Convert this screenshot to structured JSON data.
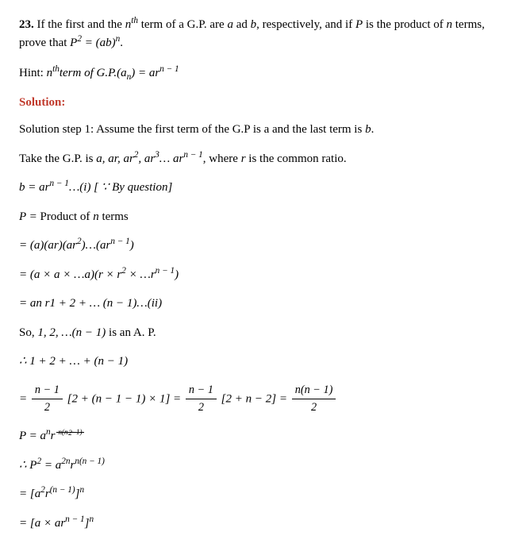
{
  "question": {
    "number": "23.",
    "text_parts": {
      "p1": "If the first and the ",
      "nth": "n",
      "nth_sup": "th",
      "p2": " term of a G.P. are ",
      "a": "a",
      "p3": " ad ",
      "b": "b",
      "p4": ", respectively, and if ",
      "P": "P",
      "p5": " is the product of ",
      "n": "n",
      "p6": " terms, prove that ",
      "eq": "P",
      "eq_sup": "2",
      "eq2": " = (ab)",
      "eq2_sup": "n",
      "p7": "."
    }
  },
  "hint": {
    "label": "Hint: ",
    "formula": {
      "p1": "n",
      "sup1": "th",
      "p2": "term of G.P.(a",
      "sub1": "n",
      "p3": ") = ar",
      "sup2": "n − 1"
    }
  },
  "solution": {
    "heading": "Solution:",
    "step1": {
      "p1": "Solution step 1: Assume the first term of the G.P is a and the last term is ",
      "b": "b",
      "p2": "."
    },
    "line2": {
      "p1": "Take the G.P. is ",
      "gp": "a, ar, ar",
      "sup1": "2",
      "p2": ", ar",
      "sup2": "3",
      "p3": "… ar",
      "sup3": "n − 1",
      "p4": ", where ",
      "r": "r",
      "p5": " is the common ratio."
    },
    "line3": {
      "eq": "b = ar",
      "sup": "n − 1",
      "tail": "…(i) [ ∵ By question]"
    },
    "line4": {
      "p1": "P = ",
      "p2": " Product of ",
      "n": "n",
      "p3": " terms"
    },
    "line5": "= (a)(ar)(ar²)…(arⁿ ⁻ ¹)",
    "line5_parts": {
      "p1": "= (a)(ar)(ar",
      "sup1": "2",
      "p2": ")…(ar",
      "sup2": "n − 1",
      "p3": ")"
    },
    "line6": {
      "p1": "= (a × a × …a)(r × r",
      "sup1": "2",
      "p2": " × …r",
      "sup2": "n − 1",
      "p3": ")"
    },
    "line7": "= an r1 + 2 + … (n − 1)…(ii)",
    "line8": {
      "p1": "So, ",
      "seq": "1, 2, …(n − 1)",
      "p2": " is an A. P."
    },
    "line9": "∴ 1 + 2 + … + (n − 1)",
    "line10": {
      "eq": "= ",
      "f1_num": "n − 1",
      "f1_den": "2",
      "mid1": "[2 + (n − 1 − 1) × 1] = ",
      "f2_num": "n − 1",
      "f2_den": "2",
      "mid2": "[2 + n − 2] = ",
      "f3_num": "n(n − 1)",
      "f3_den": "2"
    },
    "line11": {
      "p1": "P = a",
      "sup1": "n",
      "p2": "r",
      "f_num": "n(n − 1)",
      "f_den": "2"
    },
    "line12": {
      "p1": "∴ P",
      "sup1": "2",
      "p2": " = a",
      "sup2": "2n",
      "p3": "r",
      "sup3": "n(n − 1)"
    },
    "line13": {
      "p1": "= [a",
      "sup1": "2",
      "p2": "r",
      "sup2": "(n − 1)",
      "p3": "]",
      "sup3": "n"
    },
    "line14": {
      "p1": "= [a × ar",
      "sup1": "n − 1",
      "p2": "]",
      "sup2": "n"
    }
  },
  "colors": {
    "text": "#000000",
    "solution_heading": "#c0392b",
    "background": "#ffffff"
  }
}
